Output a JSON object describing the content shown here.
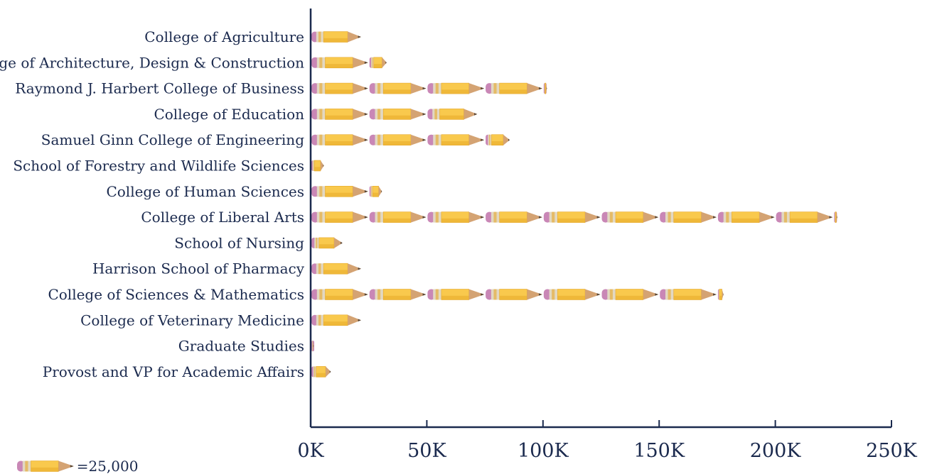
{
  "chart_data": {
    "type": "bar",
    "style": "pictograph",
    "icon": "pencil-icon",
    "icon_unit": 25000,
    "legend_text": "=25,000",
    "categories": [
      "College of Agriculture",
      "College of Architecture, Design & Construction",
      "Raymond J. Harbert College of Business",
      "College of Education",
      "Samuel Ginn College of Engineering",
      "School of Forestry and Wildlife Sciences",
      "College of Human Sciences",
      "College of Liberal Arts",
      "School of Nursing",
      "Harrison School of Pharmacy",
      "College of Sciences & Mathematics",
      "College of Veterinary Medicine",
      "Graduate Studies",
      "Provost and VP for Academic Affairs"
    ],
    "values": [
      22000,
      33000,
      102000,
      72000,
      86000,
      6000,
      31000,
      227000,
      14000,
      22000,
      178000,
      22000,
      1000,
      9000
    ],
    "xlim": [
      0,
      250000
    ],
    "xticks": [
      0,
      50000,
      100000,
      150000,
      200000,
      250000
    ],
    "xtick_labels": [
      "0K",
      "50K",
      "100K",
      "150K",
      "200K",
      "250K"
    ],
    "title": "",
    "xlabel": "",
    "ylabel": "",
    "grid": false,
    "legend_position": "bottom-left",
    "colors": {
      "axis": "#1b2a4e",
      "text": "#1b2a4e",
      "pencil_body": "#f9c94d",
      "pencil_band": "#e7a92a",
      "eraser": "#c987b6",
      "ferrule": "#e2d8c2",
      "wood": "#d4a373",
      "lead": "#5a4634"
    }
  }
}
